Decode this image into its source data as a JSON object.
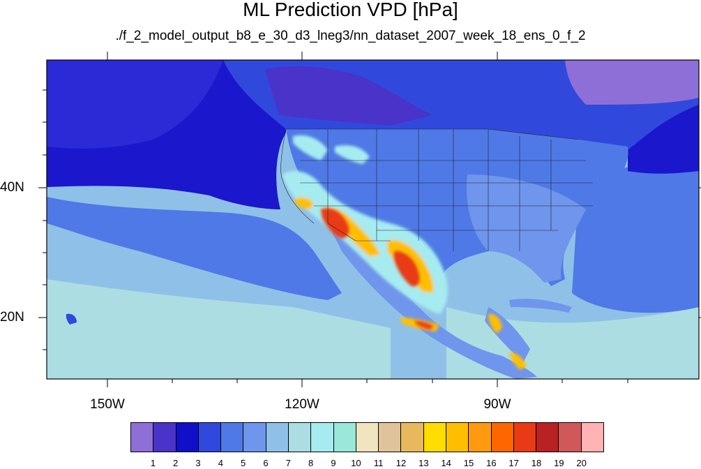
{
  "title": "ML Prediction VPD [hPa]",
  "subtitle": "./f_2_model_output_b8_e_30_d3_lneg3/nn_dataset_2007_week_18_ens_0_f_2",
  "longitude_labels": [
    "150W",
    "120W",
    "90W"
  ],
  "latitude_labels": [
    "40N",
    "20N"
  ],
  "colorbar": {
    "labels": [
      "1",
      "2",
      "3",
      "4",
      "5",
      "6",
      "7",
      "8",
      "9",
      "10",
      "11",
      "12",
      "13",
      "14",
      "15",
      "16",
      "17",
      "18",
      "19",
      "20"
    ],
    "colors": [
      "#8e6fd8",
      "#4a33c8",
      "#1010c8",
      "#3049dc",
      "#4f79e6",
      "#6f95ec",
      "#8fc1e8",
      "#acdde3",
      "#a6ebef",
      "#99e8da",
      "#f1e4c0",
      "#dfc39a",
      "#e8b95c",
      "#ffdd00",
      "#ffbf00",
      "#ff9a10",
      "#ff6600",
      "#e83a14",
      "#b82222",
      "#d05858",
      "#ffb3b3"
    ]
  },
  "map_colors": {
    "ocean_deep": "#1a17cc",
    "ocean_north": "#2a2ad6",
    "ocean_mid": "#4f79e6",
    "ocean_south": "#8fc1e8",
    "ocean_tropic": "#acdde3",
    "land_base": "#4f79e6",
    "land_east": "#6f95ec",
    "land_cool": "#3049dc",
    "pacific_nw": "#6f95ec",
    "hudson": "#8e6fd8",
    "nw_north": "#4a33c8"
  }
}
